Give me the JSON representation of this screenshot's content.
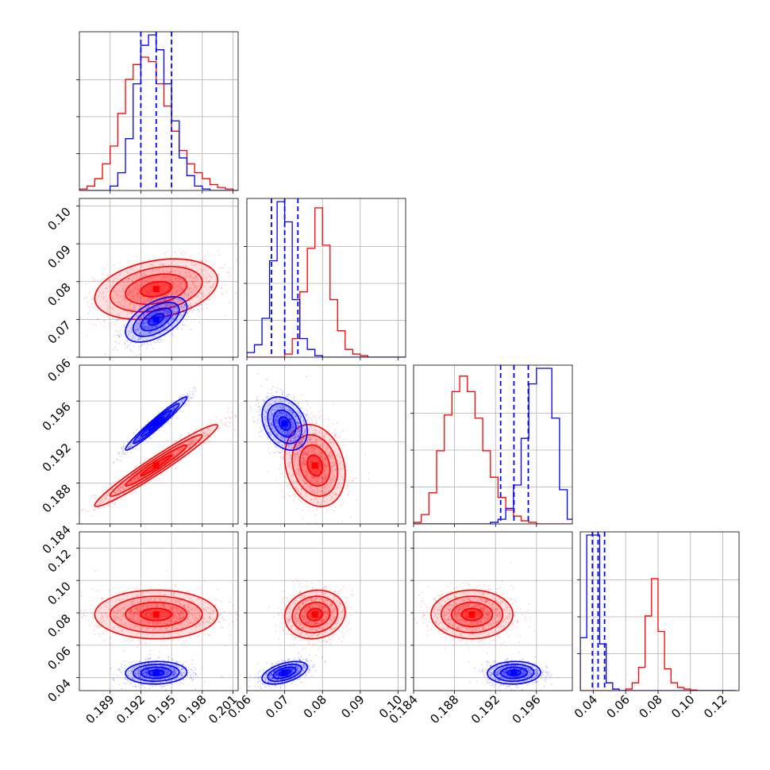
{
  "chart_data": {
    "type": "corner",
    "colors": {
      "blue": "#0000ff",
      "red": "#ff0000",
      "grid": "#b0b0b0"
    },
    "grid": true,
    "parameters": [
      {
        "id": "p1",
        "range": [
          0.186,
          0.2015
        ],
        "ticks": [
          0.189,
          0.192,
          0.195,
          0.198,
          0.201
        ],
        "tick_labels": [
          "0.189",
          "0.192",
          "0.195",
          "0.198",
          "0.201"
        ]
      },
      {
        "id": "p2",
        "range": [
          0.06,
          0.102
        ],
        "ticks": [
          0.06,
          0.07,
          0.08,
          0.09,
          0.1
        ],
        "tick_labels": [
          "0.06",
          "0.07",
          "0.08",
          "0.09",
          "0.10"
        ]
      },
      {
        "id": "p3",
        "range": [
          0.184,
          0.1995
        ],
        "ticks": [
          0.184,
          0.188,
          0.192,
          0.196
        ],
        "tick_labels": [
          "0.184",
          "0.188",
          "0.192",
          "0.196"
        ]
      },
      {
        "id": "p4",
        "range": [
          0.032,
          0.13
        ],
        "ticks": [
          0.04,
          0.06,
          0.08,
          0.1,
          0.12
        ],
        "tick_labels": [
          "0.04",
          "0.06",
          "0.08",
          "0.10",
          "0.12"
        ]
      }
    ],
    "quantiles_blue": [
      [
        0.192,
        0.1935,
        0.195
      ],
      [
        0.0665,
        0.07,
        0.0735
      ],
      [
        0.1925,
        0.1938,
        0.1952
      ],
      [
        0.0395,
        0.043,
        0.047
      ]
    ],
    "histograms": [
      {
        "param": 0,
        "bin_start": 0.186,
        "bin_width": 0.00075,
        "blue": [
          0,
          0,
          0,
          0,
          3,
          12,
          35,
          72,
          98,
          105,
          95,
          72,
          47,
          22,
          10,
          3,
          1,
          0,
          0,
          0,
          0
        ],
        "red": [
          1,
          3,
          8,
          18,
          30,
          52,
          75,
          85,
          90,
          87,
          72,
          57,
          40,
          27,
          18,
          12,
          8,
          4,
          2,
          1,
          0
        ]
      },
      {
        "param": 1,
        "bin_start": 0.06,
        "bin_width": 0.002,
        "blue": [
          3,
          8,
          25,
          62,
          100,
          87,
          37,
          12,
          5,
          1,
          0,
          0,
          0,
          0,
          0,
          0,
          0,
          0,
          0,
          0,
          0
        ],
        "red": [
          0,
          0,
          0,
          0,
          0,
          2,
          12,
          42,
          70,
          96,
          72,
          37,
          17,
          5,
          2,
          1,
          0,
          0,
          0,
          0,
          0
        ]
      },
      {
        "param": 2,
        "bin_start": 0.184,
        "bin_width": 0.00075,
        "blue": [
          0,
          0,
          0,
          0,
          0,
          0,
          0,
          0,
          0,
          0,
          1,
          3,
          10,
          25,
          55,
          90,
          100,
          100,
          68,
          22,
          3
        ],
        "red": [
          1,
          6,
          20,
          47,
          70,
          85,
          95,
          85,
          68,
          47,
          30,
          17,
          9,
          5,
          2,
          1,
          0,
          0,
          0,
          0,
          0
        ]
      },
      {
        "param": 3,
        "bin_start": 0.032,
        "bin_width": 0.004,
        "blue": [
          34,
          100,
          100,
          30,
          5,
          1,
          0,
          0,
          0,
          0,
          0,
          0,
          0,
          0,
          0,
          0,
          0,
          0,
          0,
          0,
          0,
          0,
          0,
          0
        ],
        "red": [
          0,
          0,
          0,
          0,
          0,
          0,
          0,
          1,
          5,
          15,
          48,
          72,
          38,
          14,
          5,
          2,
          1,
          0.4,
          0,
          0,
          0,
          0,
          0,
          0
        ]
      }
    ],
    "distributions": {
      "blue": {
        "mean": [
          0.1935,
          0.07,
          0.1938,
          0.043
        ],
        "sd": [
          0.0015,
          0.003,
          0.0013,
          0.0035
        ]
      },
      "red": {
        "mean": [
          0.1935,
          0.078,
          0.1897,
          0.079
        ],
        "sd": [
          0.003,
          0.004,
          0.002,
          0.0075
        ]
      }
    },
    "panels_2d": [
      {
        "x": 0,
        "y": 1,
        "blue_corr": 0.55,
        "red_corr": 0.3
      },
      {
        "x": 0,
        "y": 2,
        "blue_corr": 0.97,
        "red_corr": 0.97
      },
      {
        "x": 1,
        "y": 2,
        "blue_corr": -0.3,
        "red_corr": -0.2
      },
      {
        "x": 0,
        "y": 3,
        "blue_corr": 0.05,
        "red_corr": 0.0
      },
      {
        "x": 1,
        "y": 3,
        "blue_corr": 0.5,
        "red_corr": 0.1
      },
      {
        "x": 2,
        "y": 3,
        "blue_corr": 0.05,
        "red_corr": 0.0
      }
    ]
  }
}
